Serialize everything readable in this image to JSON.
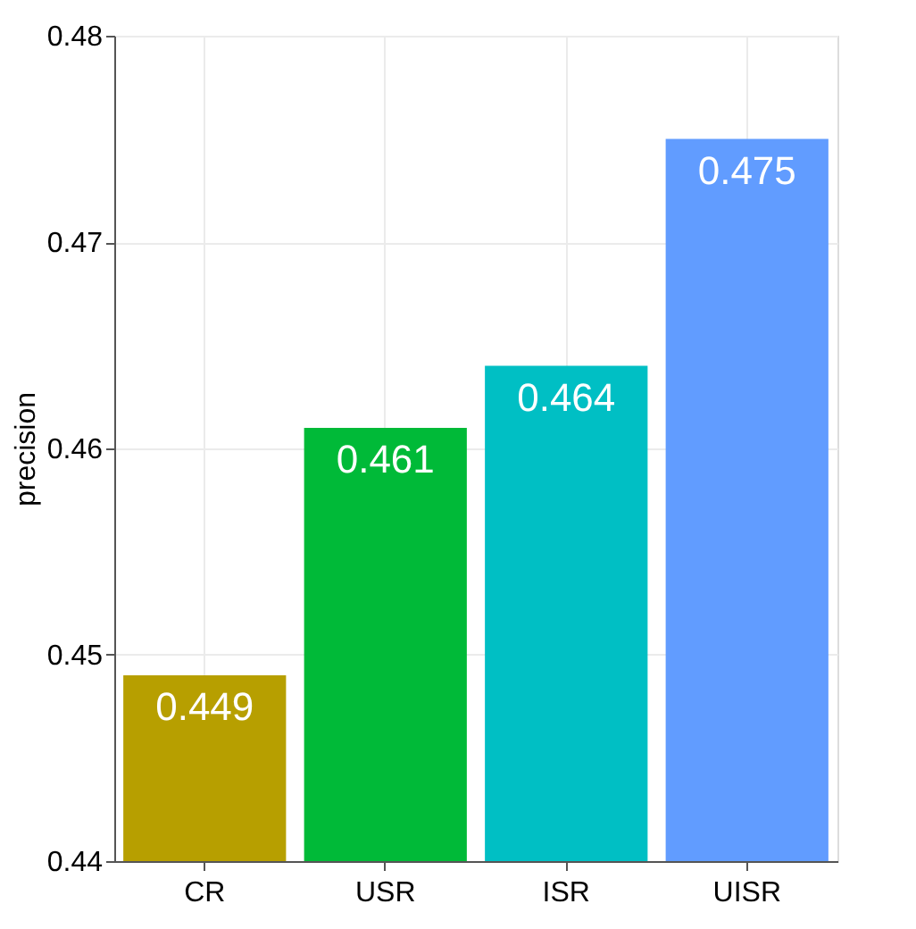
{
  "chart_data": {
    "type": "bar",
    "ylabel": "precision",
    "categories": [
      "CR",
      "USR",
      "ISR",
      "UISR"
    ],
    "values": [
      0.449,
      0.461,
      0.464,
      0.475
    ],
    "colors": [
      "#b79f00",
      "#00ba38",
      "#00bfc4",
      "#619cff"
    ],
    "ylim": [
      0.44,
      0.48
    ],
    "yticks": [
      0.44,
      0.45,
      0.46,
      0.47,
      0.48
    ],
    "grid": true,
    "data_labels": true
  }
}
